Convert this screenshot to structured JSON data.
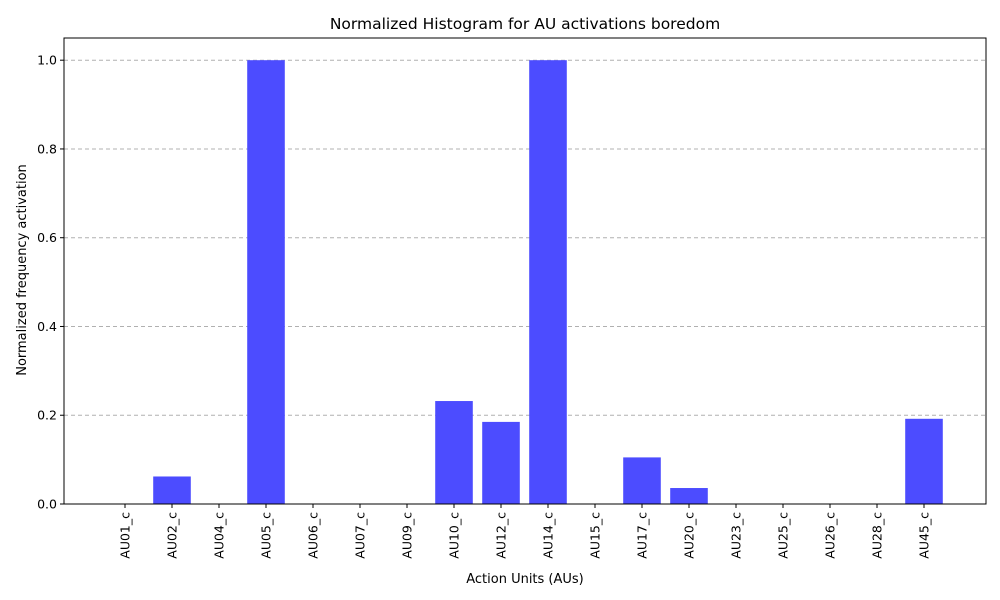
{
  "chart_data": {
    "type": "bar",
    "title": "Normalized Histogram for AU activations boredom",
    "xlabel": "Action Units (AUs)",
    "ylabel": "Normalized frequency activation",
    "categories": [
      "AU01_c",
      "AU02_c",
      "AU04_c",
      "AU05_c",
      "AU06_c",
      "AU07_c",
      "AU09_c",
      "AU10_c",
      "AU12_c",
      "AU14_c",
      "AU15_c",
      "AU17_c",
      "AU20_c",
      "AU23_c",
      "AU25_c",
      "AU26_c",
      "AU28_c",
      "AU45_c"
    ],
    "values": [
      0,
      0.062,
      0,
      1.0,
      0,
      0,
      0,
      0.232,
      0.185,
      1.0,
      0,
      0.105,
      0.036,
      0,
      0,
      0,
      0,
      0.192
    ],
    "yticks": [
      "0.0",
      "0.2",
      "0.4",
      "0.6",
      "0.8",
      "1.0"
    ],
    "ylim": [
      0,
      1.05
    ],
    "grid": "y-dashed",
    "bar_color": "#4c4cff"
  }
}
